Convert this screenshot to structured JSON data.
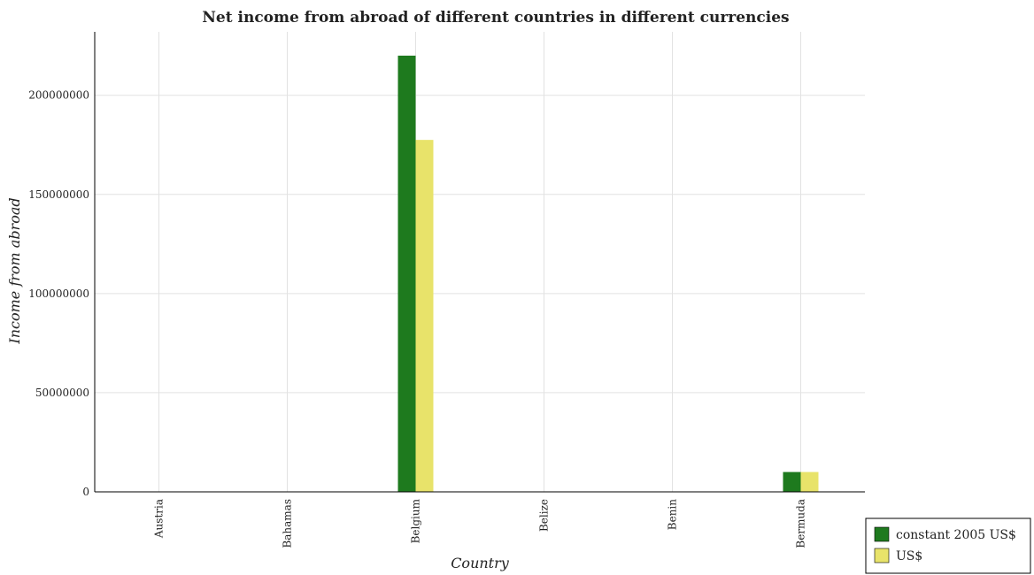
{
  "chart_data": {
    "type": "bar",
    "title": "Net income from abroad of different countries in different currencies",
    "xlabel": "Country",
    "ylabel": "Income from abroad",
    "categories": [
      "Austria",
      "Bahamas",
      "Belgium",
      "Belize",
      "Benin",
      "Bermuda"
    ],
    "series": [
      {
        "name": "constant 2005 US$",
        "color": "#1e7a1e",
        "values": [
          0,
          0,
          220000000,
          0,
          0,
          10000000
        ]
      },
      {
        "name": "US$",
        "color": "#e8e36a",
        "values": [
          0,
          0,
          177500000,
          0,
          0,
          10000000
        ]
      }
    ],
    "ylim": [
      0,
      232000000
    ],
    "yticks": [
      0,
      50000000,
      100000000,
      150000000,
      200000000
    ],
    "ytick_labels": [
      "0",
      "50000000",
      "100000000",
      "150000000",
      "200000000"
    ],
    "grid": true,
    "legend_position": "bottom-right"
  }
}
